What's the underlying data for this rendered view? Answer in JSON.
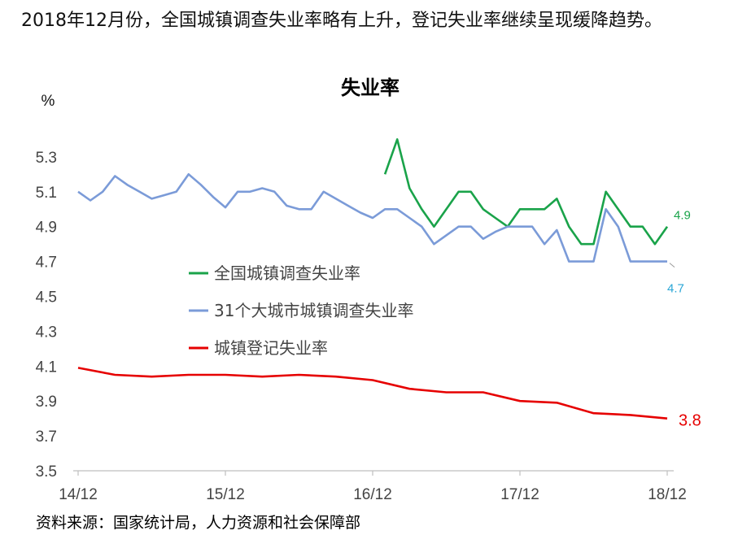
{
  "headline": "2018年12月份，全国城镇调查失业率略有上升，登记失业率继续呈现缓降趋势。",
  "source": "资料来源：国家统计局，人力资源和社会保障部",
  "chart_data": {
    "type": "line",
    "title": "失业率",
    "ylabel": "%",
    "xlabel": "",
    "ylim": [
      3.5,
      5.5
    ],
    "yticks": [
      3.5,
      3.7,
      3.9,
      4.1,
      4.3,
      4.5,
      4.7,
      4.9,
      5.1,
      5.3
    ],
    "ytick_labels": [
      "3.5",
      "3.7",
      "3.9",
      "4.1",
      "4.3",
      "4.5",
      "4.7",
      "4.9",
      "5.1",
      "5.3"
    ],
    "x": [
      "14/12",
      "15/01",
      "15/02",
      "15/03",
      "15/04",
      "15/05",
      "15/06",
      "15/07",
      "15/08",
      "15/09",
      "15/10",
      "15/11",
      "15/12",
      "16/01",
      "16/02",
      "16/03",
      "16/04",
      "16/05",
      "16/06",
      "16/07",
      "16/08",
      "16/09",
      "16/10",
      "16/11",
      "16/12",
      "17/01",
      "17/02",
      "17/03",
      "17/04",
      "17/05",
      "17/06",
      "17/07",
      "17/08",
      "17/09",
      "17/10",
      "17/11",
      "17/12",
      "18/01",
      "18/02",
      "18/03",
      "18/04",
      "18/05",
      "18/06",
      "18/07",
      "18/08",
      "18/09",
      "18/10",
      "18/11",
      "18/12"
    ],
    "xticks": [
      "14/12",
      "15/12",
      "16/12",
      "17/12",
      "18/12"
    ],
    "grid": false,
    "legend_position": "center-left",
    "series": [
      {
        "name": "全国城镇调查失业率",
        "color": "#1aa34a",
        "values": [
          null,
          null,
          null,
          null,
          null,
          null,
          null,
          null,
          null,
          null,
          null,
          null,
          null,
          null,
          null,
          null,
          null,
          null,
          null,
          null,
          null,
          null,
          null,
          null,
          null,
          5.2,
          5.4,
          5.12,
          5.0,
          4.9,
          5.0,
          5.1,
          5.1,
          5.0,
          4.95,
          4.9,
          5.0,
          5.0,
          5.0,
          5.06,
          4.9,
          4.8,
          4.8,
          5.1,
          5.0,
          4.9,
          4.9,
          4.8,
          4.9
        ],
        "end_label": "4.9",
        "end_label_color": "#1aa34a"
      },
      {
        "name": "31个大城市城镇调查失业率",
        "color": "#7b9bd8",
        "values": [
          5.1,
          5.05,
          5.1,
          5.19,
          5.14,
          5.1,
          5.06,
          5.08,
          5.1,
          5.2,
          5.14,
          5.07,
          5.01,
          5.1,
          5.1,
          5.12,
          5.1,
          5.02,
          5.0,
          5.0,
          5.1,
          5.06,
          5.02,
          4.98,
          4.95,
          5.0,
          5.0,
          4.95,
          4.9,
          4.8,
          4.85,
          4.9,
          4.9,
          4.83,
          4.87,
          4.9,
          4.9,
          4.9,
          4.8,
          4.88,
          4.7,
          4.7,
          4.7,
          5.0,
          4.9,
          4.7,
          4.7,
          4.7,
          4.7
        ],
        "end_label": "4.7",
        "end_label_color": "#2aa6d6"
      },
      {
        "name": "城镇登记失业率",
        "color": "#e60000",
        "values": [
          4.09,
          null,
          null,
          4.05,
          null,
          null,
          4.04,
          null,
          null,
          4.05,
          null,
          null,
          4.05,
          null,
          null,
          4.04,
          null,
          null,
          4.05,
          null,
          null,
          4.04,
          null,
          null,
          4.02,
          null,
          null,
          3.97,
          null,
          null,
          3.95,
          null,
          null,
          3.95,
          null,
          null,
          3.9,
          null,
          null,
          3.89,
          null,
          null,
          3.83,
          null,
          null,
          3.82,
          null,
          null,
          3.8
        ],
        "end_label": "3.8",
        "end_label_color": "#e60000"
      }
    ]
  }
}
